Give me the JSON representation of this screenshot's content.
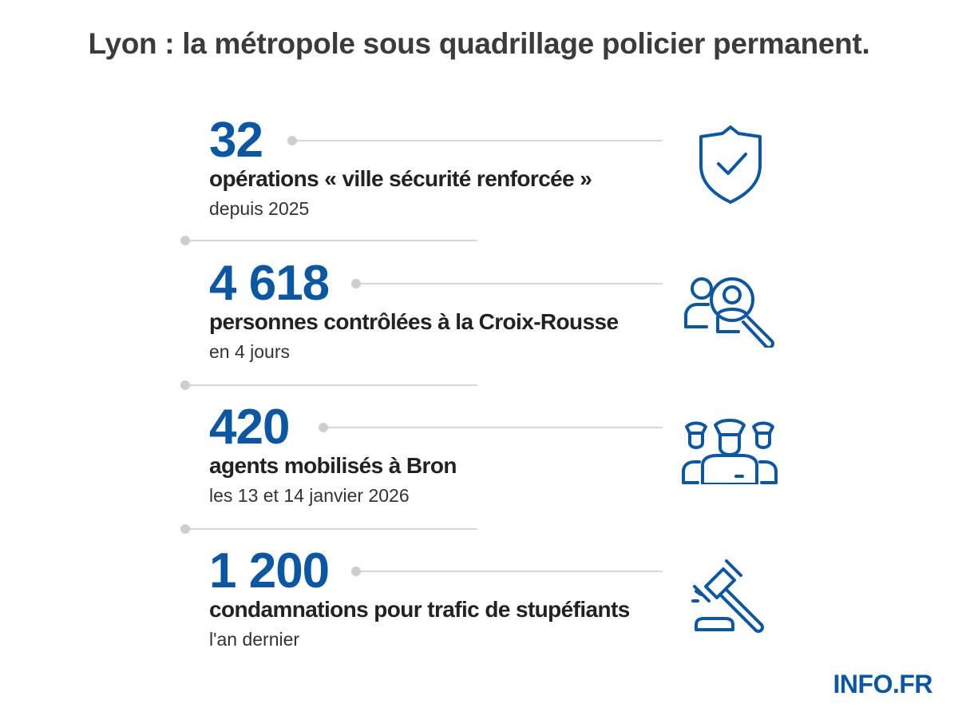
{
  "title": "Lyon : la métropole sous quadrillage policier permanent.",
  "stats": [
    {
      "number": "32",
      "label": "opérations « ville sécurité renforcée »",
      "detail": "depuis 2025",
      "icon": "shield-check-icon"
    },
    {
      "number": "4 618",
      "label": "personnes contrôlées à la Croix-Rousse",
      "detail": "en 4 jours",
      "icon": "people-search-icon"
    },
    {
      "number": "420",
      "label": "agents mobilisés à Bron",
      "detail": "les 13 et 14 janvier 2026",
      "icon": "police-officers-icon"
    },
    {
      "number": "1 200",
      "label": "condamnations pour trafic de stupéfiants",
      "detail": "l'an dernier",
      "icon": "gavel-icon"
    }
  ],
  "logo": "INFO.FR",
  "colors": {
    "accent": "#0b57a4",
    "title": "#3b3b3b",
    "divider": "#d6d6d2"
  }
}
